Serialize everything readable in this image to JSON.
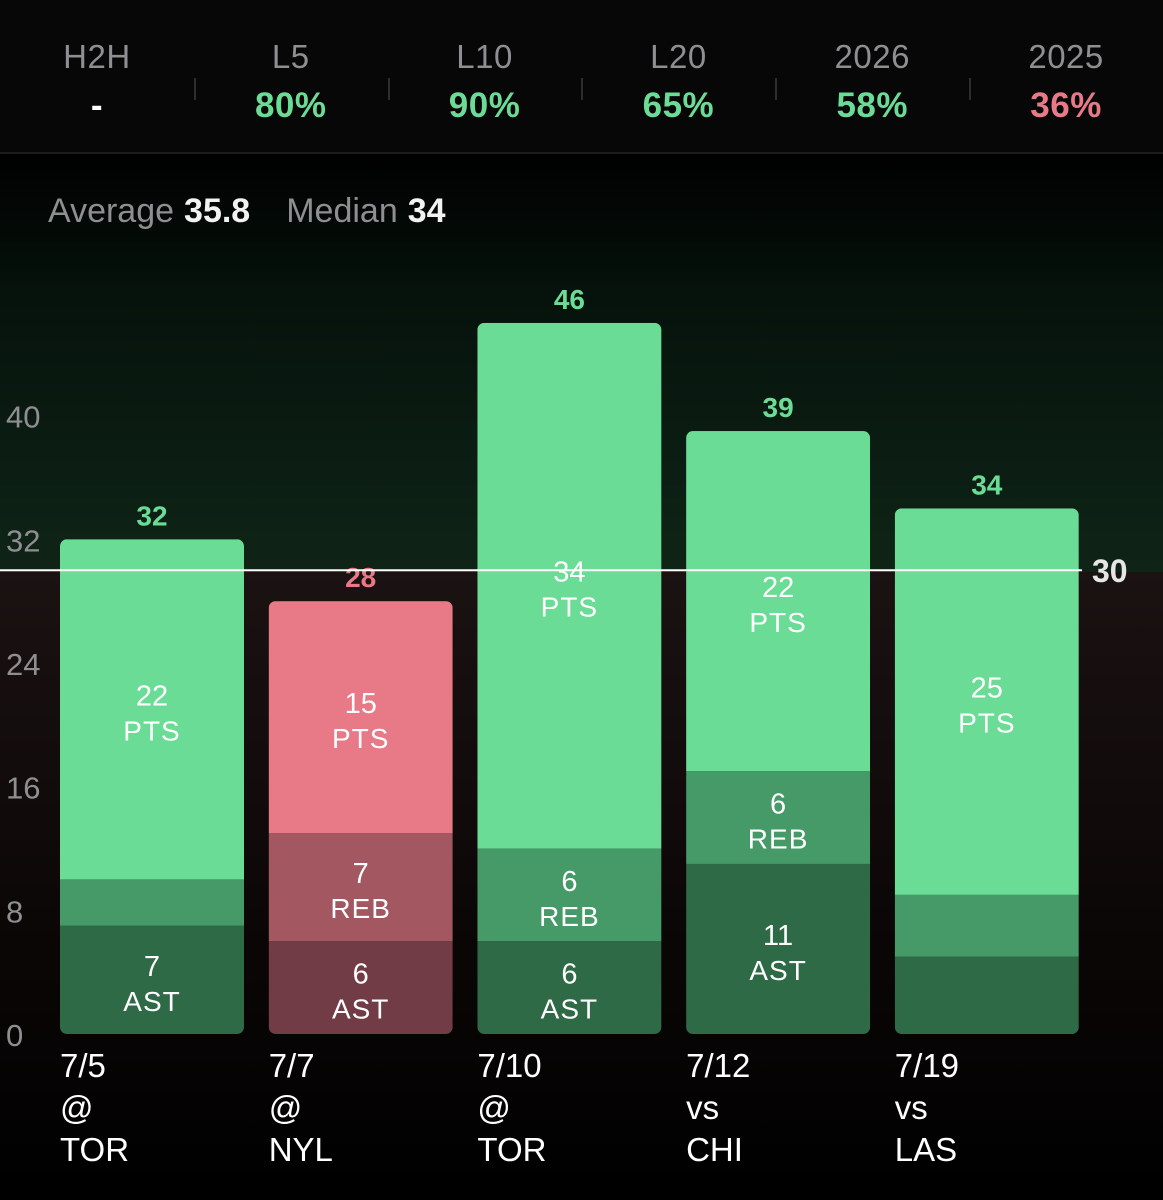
{
  "summary": [
    {
      "label": "H2H",
      "value": "-",
      "color": "#ffffff"
    },
    {
      "label": "L5",
      "value": "80%",
      "color": "#6bdc96"
    },
    {
      "label": "L10",
      "value": "90%",
      "color": "#6bdc96"
    },
    {
      "label": "L20",
      "value": "65%",
      "color": "#6bdc96"
    },
    {
      "label": "2026",
      "value": "58%",
      "color": "#6bdc96"
    },
    {
      "label": "2025",
      "value": "36%",
      "color": "#e87a88"
    }
  ],
  "stats": {
    "average_label": "Average",
    "average_value": "35.8",
    "median_label": "Median",
    "median_value": "34"
  },
  "colors": {
    "over_pts": "#6bdc96",
    "over_reb": "#469a68",
    "over_ast": "#2f6a47",
    "under_pts": "#e87a88",
    "under_reb": "#a35761",
    "under_ast": "#723c47",
    "over_total": "#6bdc96",
    "under_total": "#e87a88",
    "line": "#ffffff"
  },
  "chart_data": {
    "type": "bar",
    "stacked": true,
    "line_value": 30,
    "line_label": "30",
    "ylim": [
      0,
      48
    ],
    "yticks": [
      0,
      8,
      16,
      24,
      32,
      40
    ],
    "categories": [
      "7/5\n@\nTOR",
      "7/7\n@\nNYL",
      "7/10\n@\nTOR",
      "7/12\nvs\nCHI",
      "7/19\nvs\nLAS"
    ],
    "games": [
      {
        "date": "7/5",
        "venue": "@",
        "opponent": "TOR",
        "total": 32,
        "pts": 22,
        "reb": 3,
        "ast": 7,
        "result": "over"
      },
      {
        "date": "7/7",
        "venue": "@",
        "opponent": "NYL",
        "total": 28,
        "pts": 15,
        "reb": 7,
        "ast": 6,
        "result": "under"
      },
      {
        "date": "7/10",
        "venue": "@",
        "opponent": "TOR",
        "total": 46,
        "pts": 34,
        "reb": 6,
        "ast": 6,
        "result": "over"
      },
      {
        "date": "7/12",
        "venue": "vs",
        "opponent": "CHI",
        "total": 39,
        "pts": 22,
        "reb": 6,
        "ast": 11,
        "result": "over"
      },
      {
        "date": "7/19",
        "venue": "vs",
        "opponent": "LAS",
        "total": 34,
        "pts": 25,
        "reb": 4,
        "ast": 5,
        "result": "over"
      }
    ],
    "segment_labels": {
      "pts": "PTS",
      "reb": "REB",
      "ast": "AST"
    },
    "series": [
      {
        "name": "PTS",
        "values": [
          22,
          15,
          34,
          22,
          25
        ]
      },
      {
        "name": "REB",
        "values": [
          3,
          7,
          6,
          6,
          4
        ]
      },
      {
        "name": "AST",
        "values": [
          7,
          6,
          6,
          11,
          5
        ]
      }
    ],
    "hidden_segment_labels": [
      {
        "game": 0,
        "segment": "reb"
      },
      {
        "game": 4,
        "segment": "reb"
      },
      {
        "game": 4,
        "segment": "ast"
      }
    ]
  }
}
